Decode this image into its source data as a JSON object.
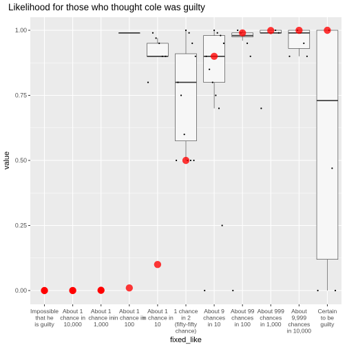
{
  "chart_data": {
    "type": "boxplot",
    "title": "Likelihood for those who thought cole was guilty",
    "xlabel": "fixed_like",
    "ylabel": "value",
    "ylim": [
      0,
      1
    ],
    "yticks": [
      "0.00",
      "0.25",
      "0.50",
      "0.75",
      "1.00"
    ],
    "ytick_values": [
      0,
      0.25,
      0.5,
      0.75,
      1
    ],
    "grid": true,
    "categories": [
      {
        "label": [
          "Impossible",
          "that he",
          "is guilty"
        ],
        "reference": 0,
        "box": null,
        "points": []
      },
      {
        "label": [
          "About 1",
          "chance in",
          "10,000"
        ],
        "reference": 0.0001,
        "box": null,
        "points": []
      },
      {
        "label": [
          "About 1",
          "chance in",
          "1,000"
        ],
        "reference": 0.001,
        "box": null,
        "points": []
      },
      {
        "label": [
          "About 1",
          "in chance in",
          "100"
        ],
        "reference": 0.01,
        "box": {
          "q1": 0.99,
          "median": 0.99,
          "q3": 0.99,
          "lower": 0.99,
          "upper": 0.99
        },
        "points": []
      },
      {
        "label": [
          "About 1",
          "in chance in",
          "10"
        ],
        "reference": 0.1,
        "box": {
          "q1": 0.9,
          "median": 0.9,
          "q3": 0.95,
          "lower": 0.9,
          "upper": 0.97
        },
        "points": [
          0.8,
          0.9,
          0.9,
          0.95,
          0.97,
          0.99
        ]
      },
      {
        "label": [
          "1 chance",
          "in 2",
          "(fifty-fifty",
          "chance)"
        ],
        "reference": 0.5,
        "box": {
          "q1": 0.575,
          "median": 0.8,
          "q3": 0.91,
          "lower": 0.5,
          "upper": 1.0
        },
        "points": [
          0.5,
          0.5,
          0.5,
          0.5,
          0.6,
          0.75,
          0.8,
          0.9,
          0.95,
          0.99,
          1.0
        ]
      },
      {
        "label": [
          "About 9",
          "chances",
          "in 10"
        ],
        "reference": 0.9,
        "box": {
          "q1": 0.8,
          "median": 0.9,
          "q3": 0.98,
          "lower": 0.7,
          "upper": 1.0
        },
        "points": [
          0,
          0.25,
          0.7,
          0.75,
          0.8,
          0.85,
          0.9,
          0.95,
          0.98,
          0.99,
          1.0
        ]
      },
      {
        "label": [
          "About 99",
          "chances",
          "in 100"
        ],
        "reference": 0.99,
        "box": {
          "q1": 0.975,
          "median": 0.98,
          "q3": 0.99,
          "lower": 0.96,
          "upper": 1.0
        },
        "points": [
          0,
          0.9,
          0.95,
          0.98,
          0.99,
          1.0
        ]
      },
      {
        "label": [
          "About 999",
          "chances",
          "in 1,000"
        ],
        "reference": 0.999,
        "box": {
          "q1": 0.99,
          "median": 0.99,
          "q3": 1.0,
          "lower": 0.985,
          "upper": 1.0
        },
        "points": [
          0.7,
          0.99,
          1.0
        ]
      },
      {
        "label": [
          "About",
          "9,999",
          "chances",
          "in 10,000"
        ],
        "reference": 0.9999,
        "box": {
          "q1": 0.93,
          "median": 0.99,
          "q3": 1.0,
          "lower": 0.9,
          "upper": 1.0
        },
        "points": [
          0.9,
          0.9,
          0.95,
          0.99,
          1.0
        ]
      },
      {
        "label": [
          "Certain",
          "to be",
          "guilty"
        ],
        "reference": 1.0,
        "box": {
          "q1": 0.12,
          "median": 0.73,
          "q3": 1.0,
          "lower": 0,
          "upper": 1.0
        },
        "points": [
          0,
          0,
          0.47,
          1.0
        ]
      }
    ],
    "colors": {
      "panel": "#ebebeb",
      "grid": "#ffffff",
      "box_fill": "#f7f7f7",
      "box_line": "#333333",
      "point": "#000000",
      "reference": "#ff0000"
    }
  }
}
